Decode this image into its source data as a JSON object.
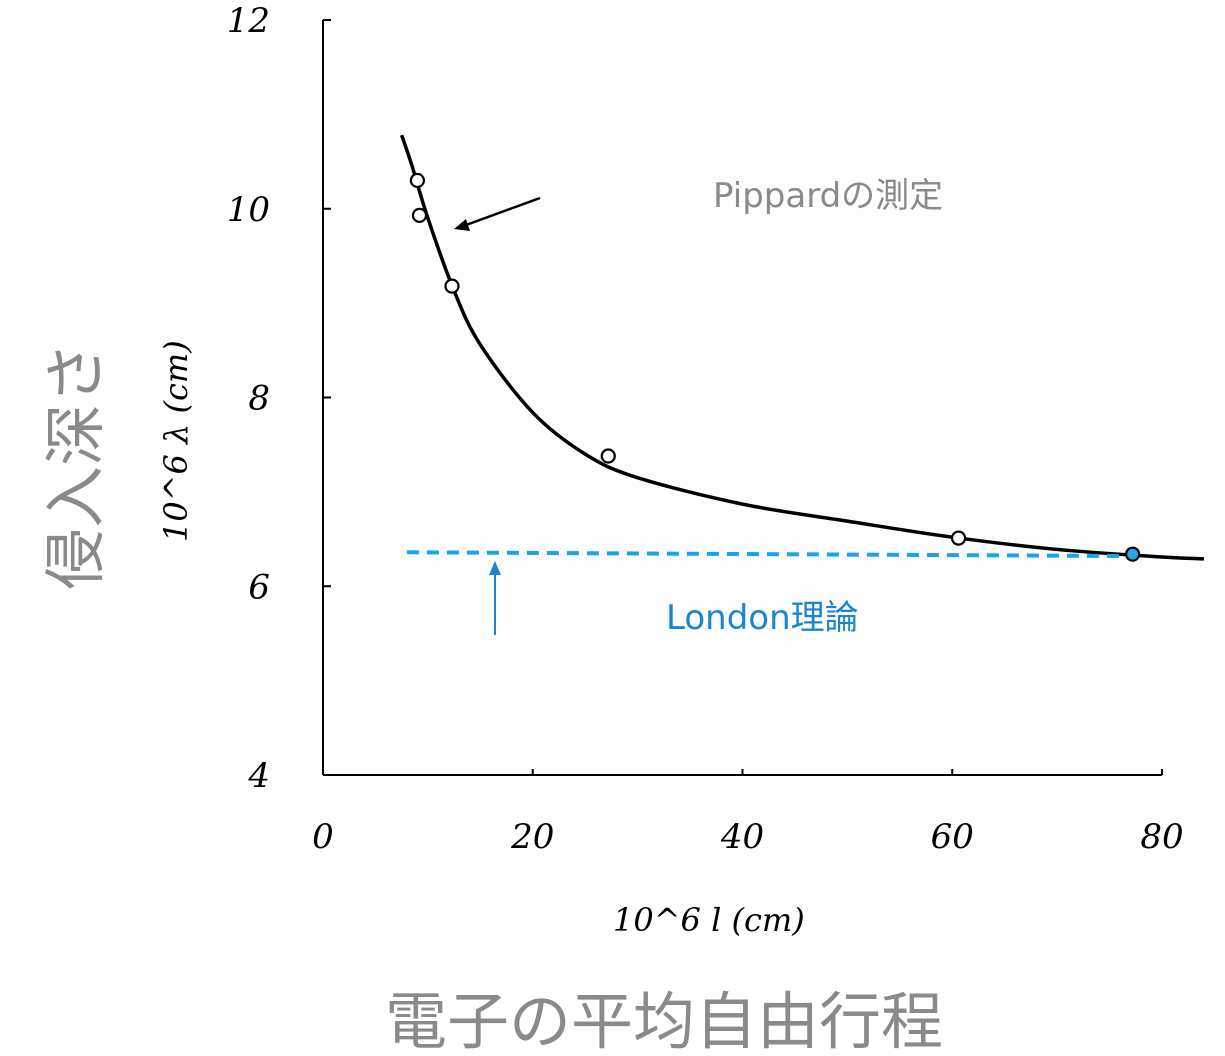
{
  "chart_data": {
    "type": "line",
    "xlabel": "10^6 l  (cm)",
    "ylabel": "10^6 λ  (cm)",
    "xlabel_jp": "電子の平均自由行程",
    "ylabel_jp": "侵入深さ",
    "xlim": [
      0,
      80
    ],
    "ylim": [
      4,
      12
    ],
    "x_ticks": [
      "0",
      "20",
      "40",
      "60",
      "80"
    ],
    "y_ticks": [
      "4",
      "6",
      "8",
      "10",
      "12"
    ],
    "series": [
      {
        "name": "Pippardの測定",
        "kind": "points",
        "x": [
          9.0,
          9.2,
          12.3,
          27.2,
          60.6,
          77.2
        ],
        "y": [
          10.3,
          9.93,
          9.18,
          7.38,
          6.51,
          6.34
        ]
      },
      {
        "name": "",
        "kind": "curve",
        "x": [
          7.5,
          8.5,
          10,
          12.5,
          15,
          20,
          25,
          30,
          40,
          50,
          60,
          70,
          80,
          84
        ],
        "y": [
          10.78,
          10.45,
          9.9,
          9.13,
          8.56,
          7.84,
          7.4,
          7.15,
          6.87,
          6.69,
          6.52,
          6.39,
          6.31,
          6.29
        ]
      },
      {
        "name": "London理論",
        "kind": "dashed",
        "x": [
          8,
          77
        ],
        "y": [
          6.36,
          6.32
        ]
      }
    ],
    "annotations": {
      "pippard": "Pippardの測定",
      "london": "London理論"
    },
    "colors": {
      "curve": "#000000",
      "london": "#1aa3e8",
      "london_text": "#1a86cf",
      "annotation_gray": "#8a8a8a"
    },
    "grid": false
  }
}
